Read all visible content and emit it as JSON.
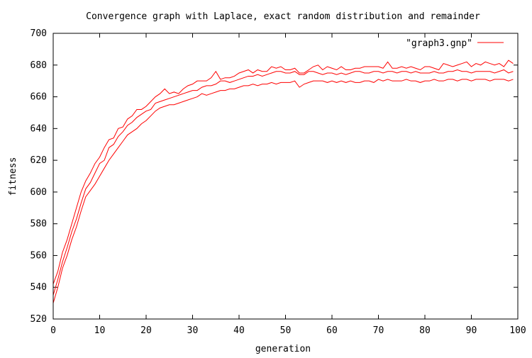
{
  "chart_data": {
    "type": "line",
    "title": "Convergence graph with Laplace, exact random distribution and remainder",
    "xlabel": "generation",
    "ylabel": "fitness",
    "xlim": [
      0,
      100
    ],
    "ylim": [
      520,
      700
    ],
    "xticks": [
      0,
      10,
      20,
      30,
      40,
      50,
      60,
      70,
      80,
      90,
      100
    ],
    "yticks": [
      520,
      540,
      560,
      580,
      600,
      620,
      640,
      660,
      680,
      700
    ],
    "grid": false,
    "legend": {
      "position": "top-right",
      "label": "\"graph3.gnp\""
    },
    "line_color": "#ff0000",
    "x": [
      0,
      1,
      2,
      3,
      4,
      5,
      6,
      7,
      8,
      9,
      10,
      11,
      12,
      13,
      14,
      15,
      16,
      17,
      18,
      19,
      20,
      21,
      22,
      23,
      24,
      25,
      26,
      27,
      28,
      29,
      30,
      31,
      32,
      33,
      34,
      35,
      36,
      37,
      38,
      39,
      40,
      41,
      42,
      43,
      44,
      45,
      46,
      47,
      48,
      49,
      50,
      51,
      52,
      53,
      54,
      55,
      56,
      57,
      58,
      59,
      60,
      61,
      62,
      63,
      64,
      65,
      66,
      67,
      68,
      69,
      70,
      71,
      72,
      73,
      74,
      75,
      76,
      77,
      78,
      79,
      80,
      81,
      82,
      83,
      84,
      85,
      86,
      87,
      88,
      89,
      90,
      91,
      92,
      93,
      94,
      95,
      96,
      97,
      98,
      99
    ],
    "series": [
      {
        "values": [
          542,
          550,
          562,
          570,
          580,
          590,
          600,
          607,
          612,
          618,
          622,
          628,
          633,
          634,
          640,
          641,
          646,
          648,
          652,
          652,
          654,
          657,
          660,
          662,
          665,
          662,
          663,
          662,
          665,
          667,
          668,
          670,
          670,
          670,
          672,
          676,
          671,
          672,
          672,
          673,
          675,
          676,
          677,
          675,
          677,
          676,
          676,
          679,
          678,
          679,
          677,
          677,
          678,
          675,
          675,
          677,
          679,
          680,
          677,
          679,
          678,
          677,
          679,
          677,
          677,
          678,
          678,
          679,
          679,
          679,
          679,
          678,
          682,
          678,
          678,
          679,
          678,
          679,
          678,
          677,
          679,
          679,
          678,
          677,
          681,
          680,
          679,
          680,
          681,
          682,
          679,
          681,
          680,
          682,
          681,
          680,
          681,
          679,
          683,
          681
        ]
      },
      {
        "values": [
          535,
          545,
          556,
          565,
          575,
          583,
          593,
          602,
          606,
          612,
          618,
          620,
          628,
          630,
          635,
          638,
          642,
          644,
          647,
          649,
          651,
          652,
          656,
          657,
          658,
          659,
          660,
          661,
          662,
          663,
          664,
          664,
          666,
          667,
          667,
          668,
          670,
          670,
          669,
          670,
          671,
          672,
          673,
          673,
          674,
          673,
          674,
          675,
          676,
          676,
          675,
          675,
          676,
          674,
          674,
          676,
          676,
          675,
          674,
          675,
          675,
          674,
          675,
          674,
          675,
          676,
          676,
          675,
          675,
          676,
          676,
          675,
          676,
          676,
          675,
          676,
          676,
          675,
          676,
          675,
          675,
          675,
          676,
          675,
          675,
          676,
          676,
          677,
          676,
          676,
          675,
          676,
          676,
          676,
          676,
          675,
          676,
          677,
          675,
          676
        ]
      },
      {
        "values": [
          530,
          540,
          552,
          560,
          570,
          578,
          588,
          597,
          601,
          605,
          610,
          615,
          620,
          624,
          628,
          632,
          636,
          638,
          640,
          643,
          645,
          648,
          651,
          653,
          654,
          655,
          655,
          656,
          657,
          658,
          659,
          660,
          662,
          661,
          662,
          663,
          664,
          664,
          665,
          665,
          666,
          667,
          667,
          668,
          667,
          668,
          668,
          669,
          668,
          669,
          669,
          669,
          670,
          666,
          668,
          669,
          670,
          670,
          670,
          669,
          670,
          669,
          670,
          669,
          670,
          669,
          669,
          670,
          670,
          669,
          671,
          670,
          671,
          670,
          670,
          670,
          671,
          670,
          670,
          669,
          670,
          670,
          671,
          670,
          670,
          671,
          671,
          670,
          671,
          671,
          670,
          671,
          671,
          671,
          670,
          671,
          671,
          671,
          670,
          671
        ]
      }
    ]
  }
}
